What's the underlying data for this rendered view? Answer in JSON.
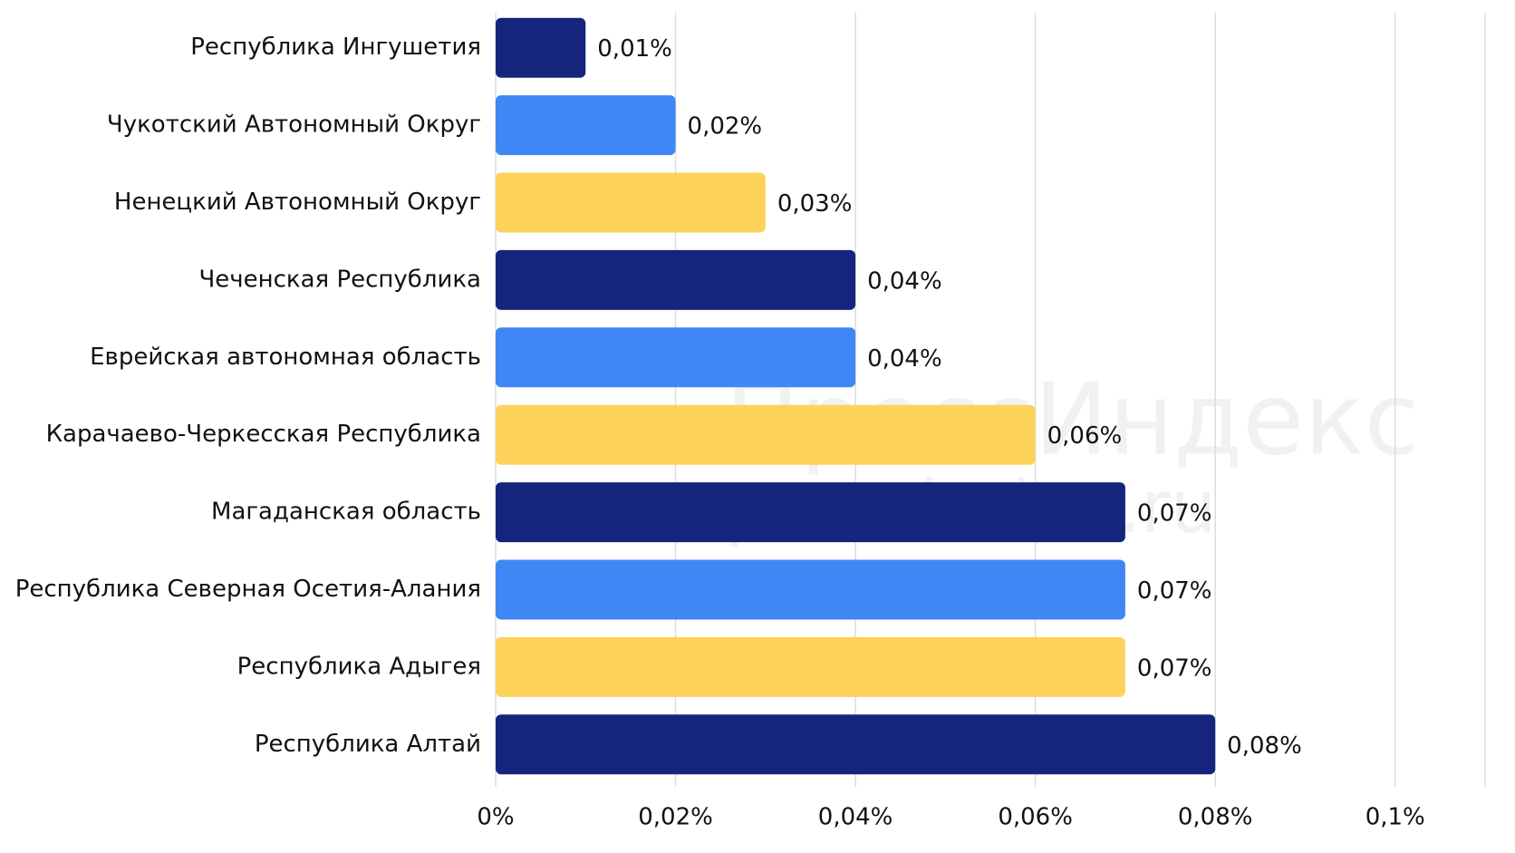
{
  "chart_data": {
    "type": "hbar",
    "categories": [
      "Республика Ингушетия",
      "Чукотский Автономный Округ",
      "Ненецкий Автономный Округ",
      "Чеченская Республика",
      "Еврейская автономная область",
      "Карачаево-Черкесская Республика",
      "Магаданская область",
      "Республика Северная Осетия-Алания",
      "Республика Адыгея",
      "Республика Алтай"
    ],
    "values": [
      0.01,
      0.02,
      0.03,
      0.04,
      0.04,
      0.06,
      0.07,
      0.07,
      0.07,
      0.08
    ],
    "value_labels": [
      "0,01%",
      "0,02%",
      "0,03%",
      "0,04%",
      "0,04%",
      "0,06%",
      "0,07%",
      "0,07%",
      "0,07%",
      "0,08%"
    ],
    "colors": [
      "#15257d",
      "#3f87f5",
      "#fdd25b",
      "#15257d",
      "#3f87f5",
      "#fdd25b",
      "#15257d",
      "#3f87f5",
      "#fdd25b",
      "#15257d"
    ],
    "xlim": [
      0,
      0.11
    ],
    "xticks": [
      {
        "value": 0,
        "label": "0%"
      },
      {
        "value": 0.02,
        "label": "0,02%"
      },
      {
        "value": 0.04,
        "label": "0,04%"
      },
      {
        "value": 0.06,
        "label": "0,06%"
      },
      {
        "value": 0.08,
        "label": "0,08%"
      },
      {
        "value": 0.1,
        "label": "0,1%"
      }
    ],
    "grid": true,
    "watermark": [
      "ПрессИндекс",
      "pressindex.ru"
    ]
  }
}
